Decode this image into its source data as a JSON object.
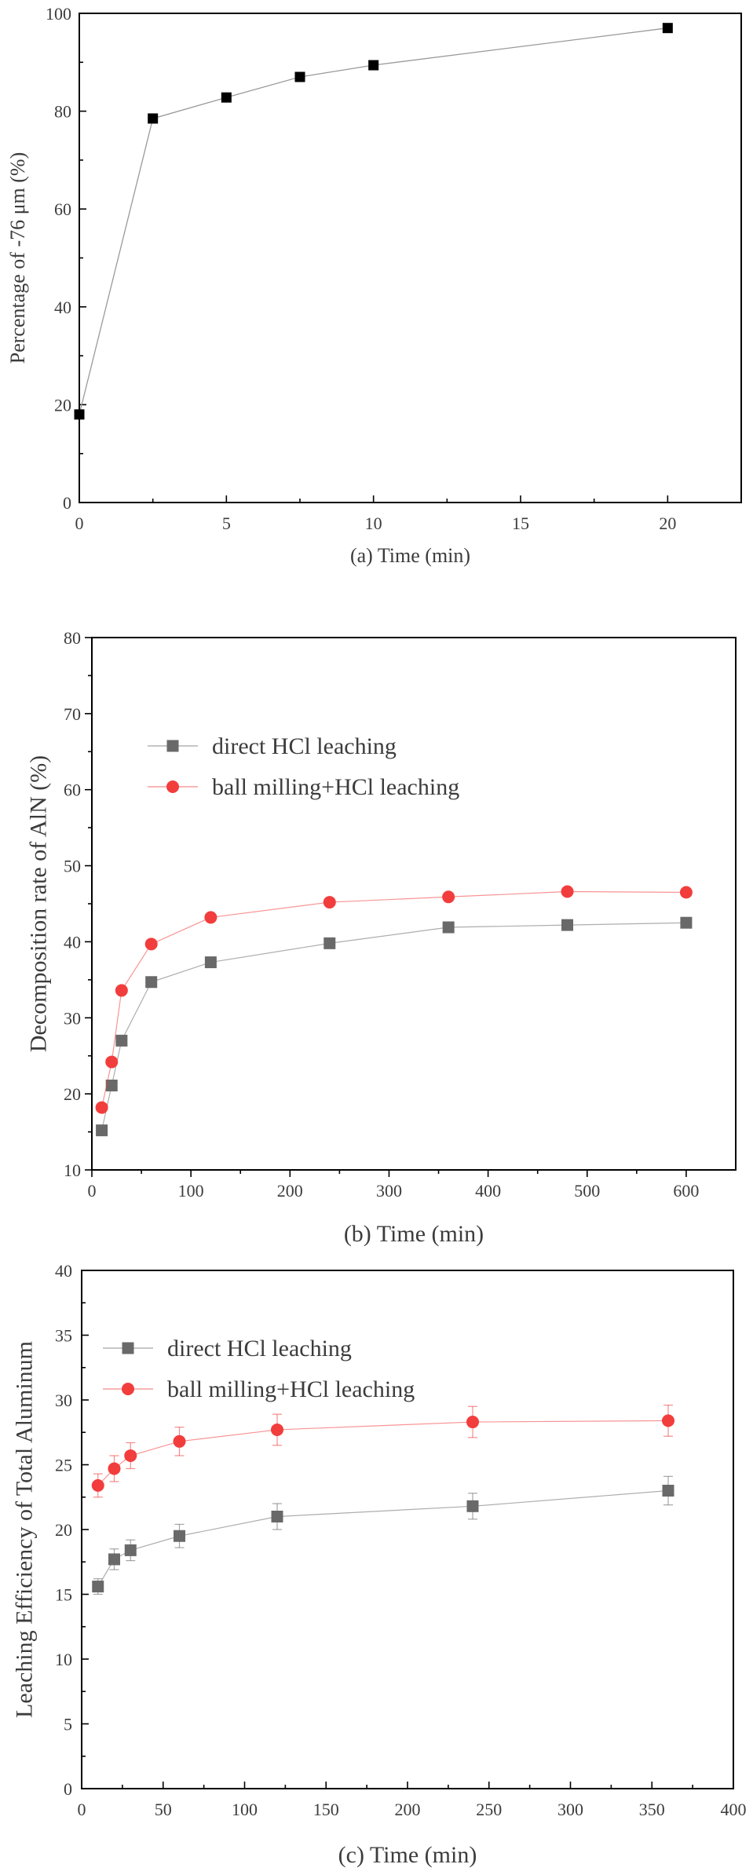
{
  "chart_data": [
    {
      "id": "a",
      "type": "line",
      "title": "",
      "xlabel": "(a) Time (min)",
      "ylabel": "Percentage of -76 μm (%)",
      "xlim": [
        0,
        22.5
      ],
      "ylim": [
        0,
        100
      ],
      "xticks": [
        0,
        5,
        10,
        15,
        20
      ],
      "yticks": [
        0,
        20,
        40,
        60,
        80,
        100
      ],
      "grid": false,
      "legend": null,
      "series": [
        {
          "name": "Percentage of -76 μm",
          "color": "#000000",
          "line_color": "#9a9a9a",
          "marker": "square",
          "x": [
            0,
            2.5,
            5,
            7.5,
            10,
            20
          ],
          "y": [
            18,
            78.5,
            82.8,
            87,
            89.4,
            97
          ]
        }
      ]
    },
    {
      "id": "b",
      "type": "line",
      "title": "",
      "xlabel": "(b) Time (min)",
      "ylabel": "Decomposition rate of AlN (%)",
      "xlim": [
        0,
        650
      ],
      "ylim": [
        10,
        80
      ],
      "xticks": [
        0,
        100,
        200,
        300,
        400,
        500,
        600
      ],
      "yticks": [
        10,
        20,
        30,
        40,
        50,
        60,
        70,
        80
      ],
      "grid": false,
      "legend": "upper-left",
      "series": [
        {
          "name": "direct HCl leaching",
          "color": "#696969",
          "marker": "square",
          "x": [
            10,
            20,
            30,
            60,
            120,
            240,
            360,
            480,
            600
          ],
          "y": [
            15.2,
            21.1,
            27,
            34.7,
            37.3,
            39.8,
            41.9,
            42.2,
            42.5
          ]
        },
        {
          "name": "ball milling+HCl leaching",
          "color": "#f23d3d",
          "marker": "circle",
          "x": [
            10,
            20,
            30,
            60,
            120,
            240,
            360,
            480,
            600
          ],
          "y": [
            18.2,
            24.2,
            33.6,
            39.7,
            43.2,
            45.2,
            45.9,
            46.6,
            46.5
          ]
        }
      ]
    },
    {
      "id": "c",
      "type": "line",
      "title": "",
      "xlabel": "(c) Time (min)",
      "ylabel": "Leaching Efficiency of Total Aluminum",
      "xlim": [
        0,
        400
      ],
      "ylim": [
        0,
        40
      ],
      "xticks": [
        0,
        50,
        100,
        150,
        200,
        250,
        300,
        350,
        400
      ],
      "yticks": [
        0,
        5,
        10,
        15,
        20,
        25,
        30,
        35,
        40
      ],
      "grid": false,
      "legend": "upper-left",
      "series": [
        {
          "name": "direct HCl leaching",
          "color": "#696969",
          "marker": "square",
          "error_bars": true,
          "x": [
            10,
            20,
            30,
            60,
            120,
            240,
            360
          ],
          "y": [
            15.6,
            17.7,
            18.4,
            19.5,
            21,
            21.8,
            23
          ],
          "err": [
            0.6,
            0.8,
            0.8,
            0.9,
            1,
            1,
            1.1
          ]
        },
        {
          "name": "ball milling+HCl leaching",
          "color": "#f23d3d",
          "marker": "circle",
          "error_bars": true,
          "x": [
            10,
            20,
            30,
            60,
            120,
            240,
            360
          ],
          "y": [
            23.4,
            24.7,
            25.7,
            26.8,
            27.7,
            28.3,
            28.4
          ],
          "err": [
            0.9,
            1,
            1,
            1.1,
            1.2,
            1.2,
            1.2
          ]
        }
      ]
    }
  ]
}
